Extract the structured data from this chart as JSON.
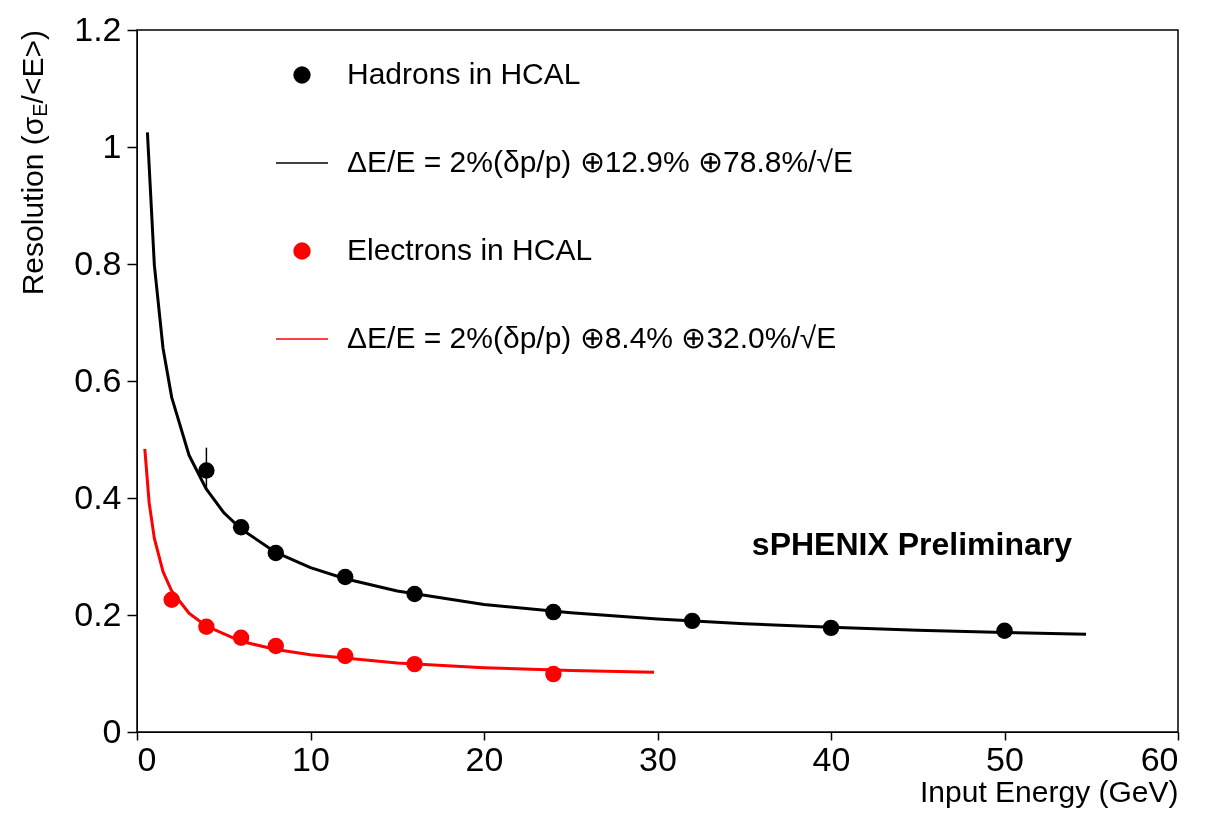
{
  "chart_data": {
    "type": "scatter",
    "xlabel": "Input Energy (GeV)",
    "ylabel": "Resolution (σ$_{E}$/<E>)",
    "xlim": [
      0,
      60
    ],
    "ylim": [
      0,
      1.2
    ],
    "xticks": [
      0,
      10,
      20,
      30,
      40,
      50,
      60
    ],
    "yticks": [
      0,
      0.2,
      0.4,
      0.6,
      0.8,
      1,
      1.2
    ],
    "grid": false,
    "legend": "top left",
    "marker": "circle",
    "annotations": [
      "sPHENIX Preliminary"
    ],
    "series": [
      {
        "name": "Hadrons in HCAL",
        "color": "#000000",
        "x": [
          4,
          6,
          8,
          12,
          16,
          24,
          32,
          40,
          50
        ],
        "values": [
          0.447,
          0.35,
          0.306,
          0.265,
          0.236,
          0.205,
          0.19,
          0.178,
          0.173
        ],
        "errors": [
          [
            0.417,
            0.486
          ],
          null,
          null,
          null,
          null,
          null,
          null,
          null,
          null
        ]
      },
      {
        "name": "ΔE/E = 2%(δp/p) ⊕12.9% ⊕78.8%/√E",
        "type": "line",
        "marker": "none",
        "color": "#000000",
        "x": [
          0.6,
          1,
          1.5,
          2,
          3,
          4,
          5,
          6,
          8,
          10,
          12,
          15,
          20,
          25,
          30,
          35,
          40,
          45,
          50,
          54.7
        ],
        "values": [
          1.025,
          0.798,
          0.656,
          0.572,
          0.473,
          0.415,
          0.375,
          0.347,
          0.307,
          0.281,
          0.262,
          0.241,
          0.218,
          0.204,
          0.193,
          0.185,
          0.179,
          0.174,
          0.17,
          0.167
        ]
      },
      {
        "name": "Electrons in HCAL",
        "color": "#ff0000",
        "x": [
          2,
          4,
          6,
          8,
          12,
          16,
          24
        ],
        "values": [
          0.226,
          0.18,
          0.161,
          0.147,
          0.13,
          0.116,
          0.099
        ]
      },
      {
        "name": "ΔE/E = 2%(δp/p) ⊕8.4% ⊕32.0%/√E",
        "type": "line",
        "marker": "none",
        "color": "#ff0000",
        "x": [
          0.45,
          0.7,
          1,
          1.5,
          2,
          3,
          4,
          6,
          8,
          10,
          15,
          20,
          25,
          29.8
        ],
        "values": [
          0.484,
          0.392,
          0.331,
          0.274,
          0.241,
          0.203,
          0.181,
          0.155,
          0.141,
          0.132,
          0.118,
          0.11,
          0.105,
          0.102
        ]
      }
    ]
  }
}
